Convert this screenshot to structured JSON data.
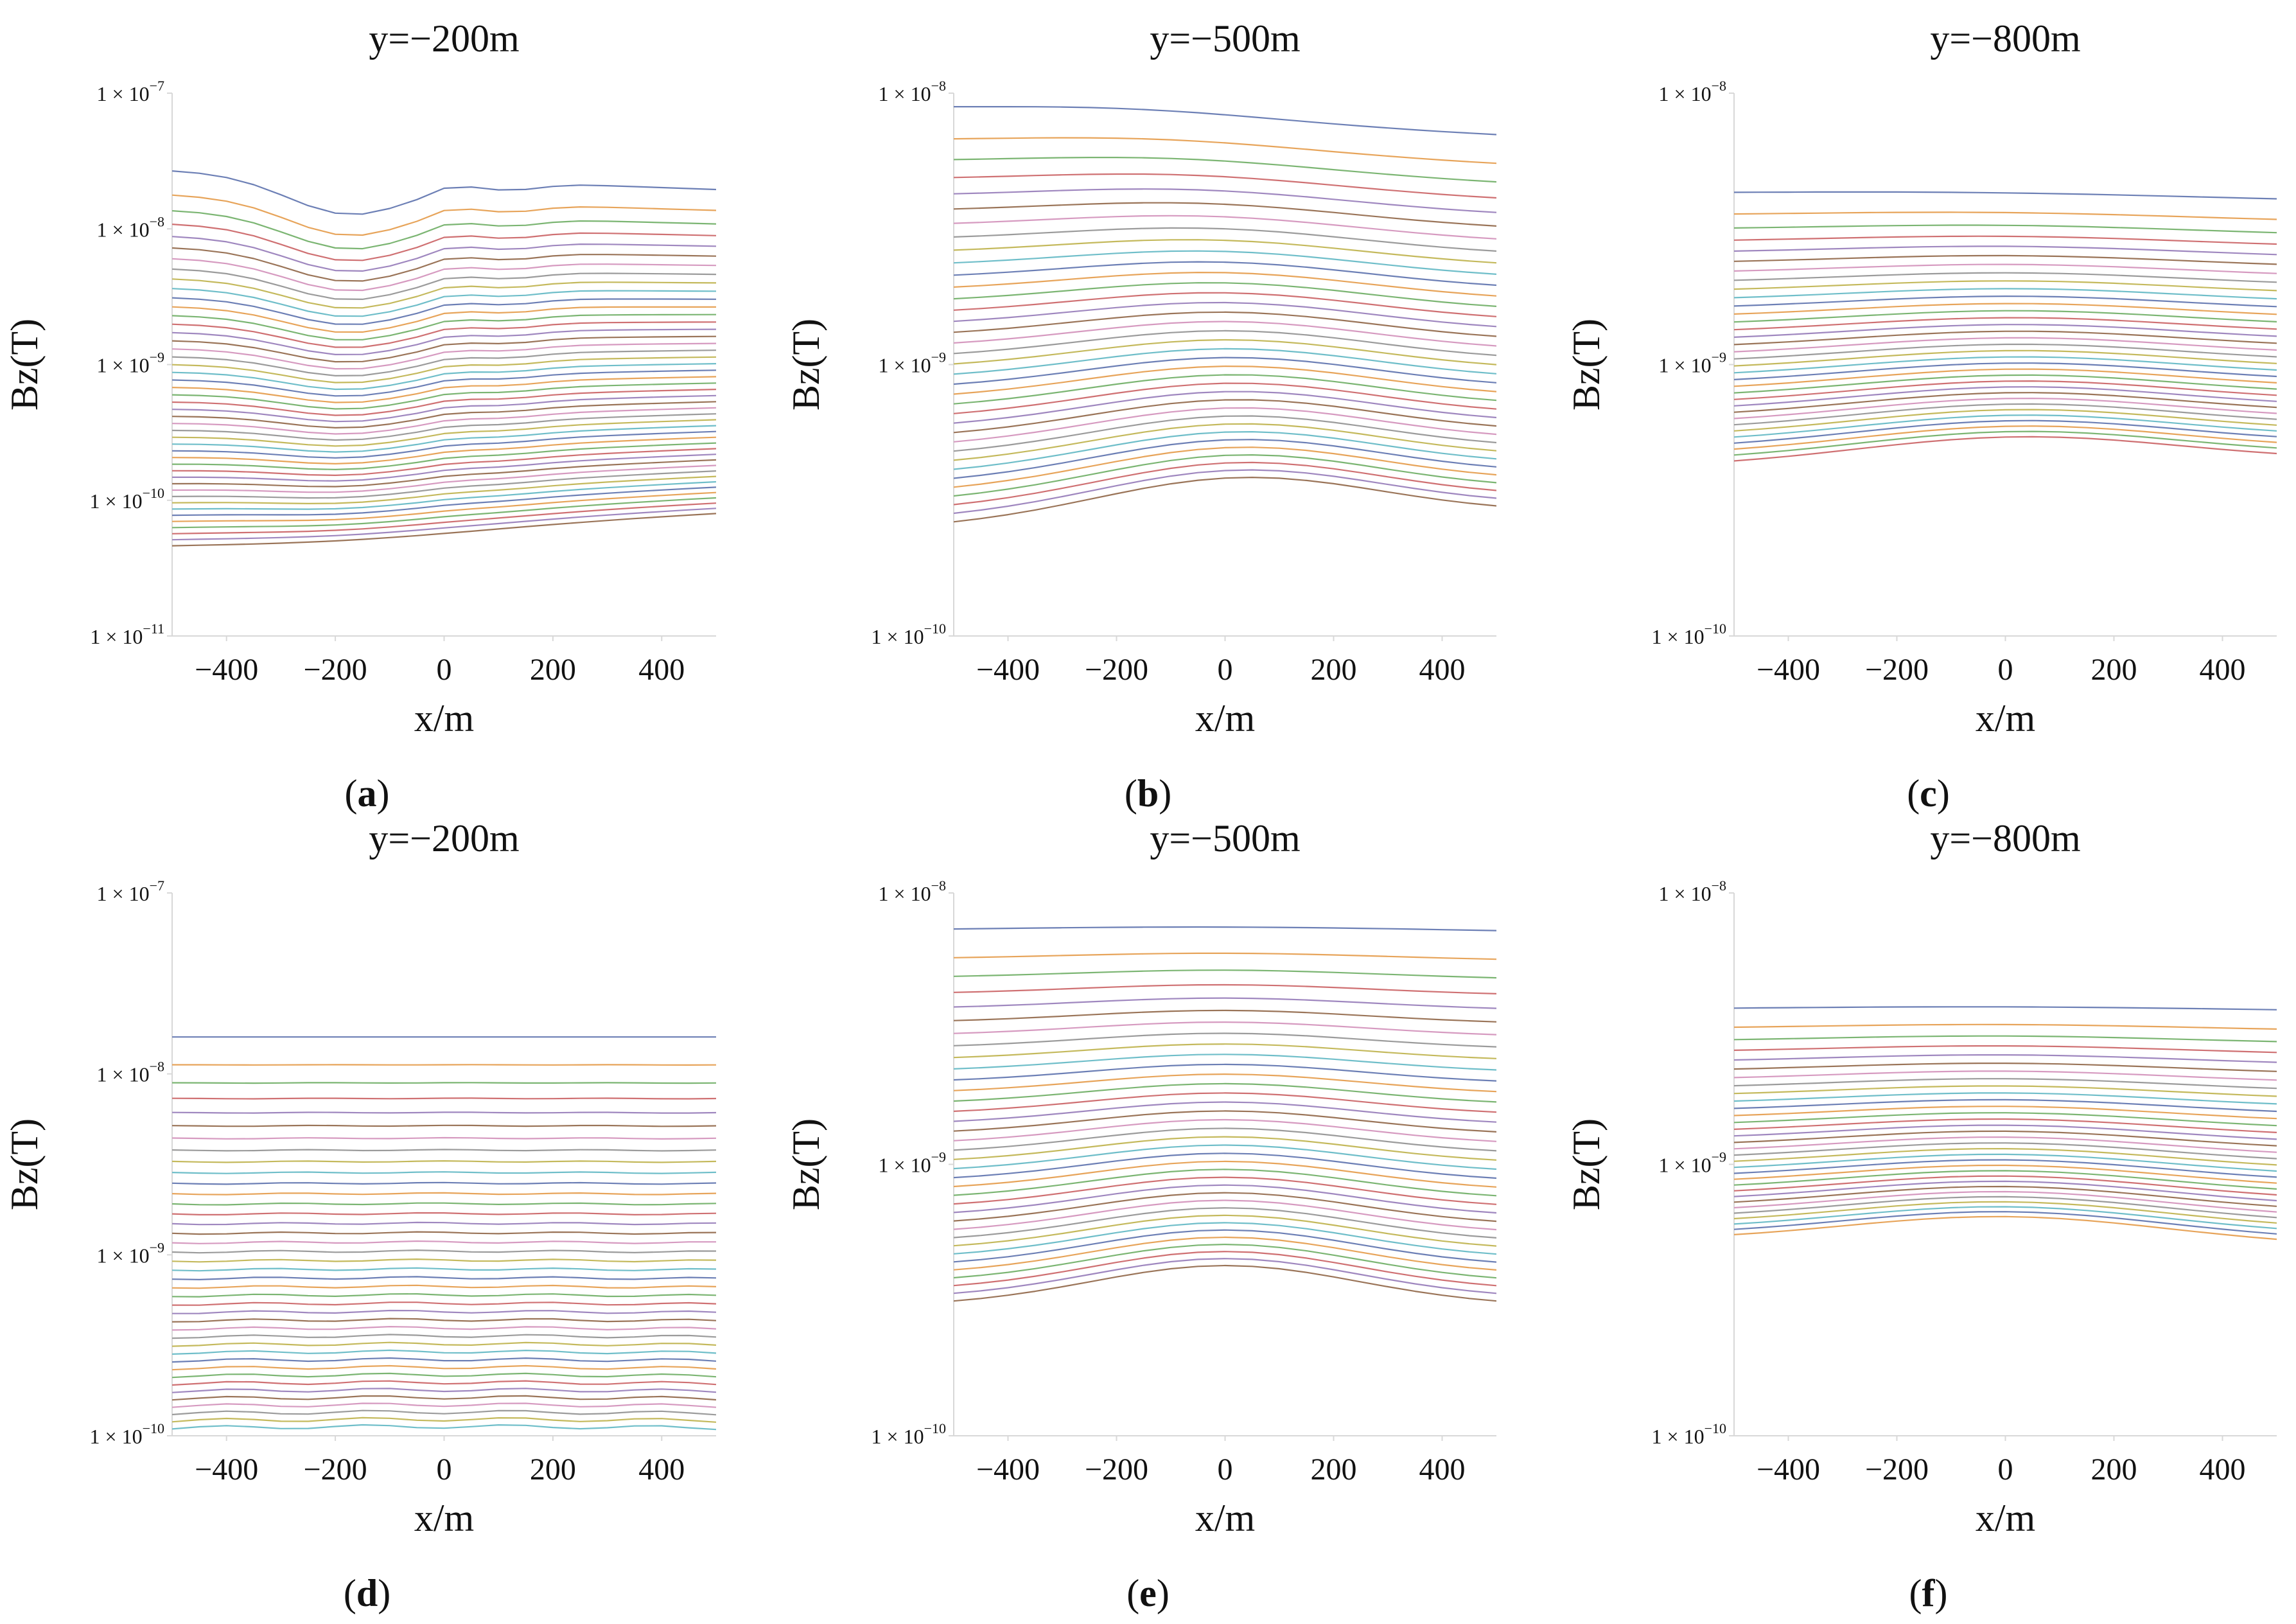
{
  "figure": {
    "panel_labels": [
      "a",
      "b",
      "c",
      "d",
      "e",
      "f"
    ]
  },
  "palette": [
    "#6c7fb5",
    "#e7a45a",
    "#7bb572",
    "#cf7072",
    "#9f87bf",
    "#9a7458",
    "#d69ac0",
    "#9b9b9b",
    "#c4b95c",
    "#6fbec9"
  ],
  "chart_data": [
    {
      "type": "line",
      "label": "a",
      "title": "y=−200m",
      "xlabel": "x/m",
      "ylabel": "Bz(T)",
      "xlim": [
        -500,
        500
      ],
      "ylim": [
        1e-11,
        1e-07
      ],
      "yscale": "log",
      "xticks": [
        -400,
        -200,
        0,
        200,
        400
      ],
      "xtick_labels": [
        "−400",
        "−200",
        "0",
        "200",
        "400"
      ],
      "yticks": [
        {
          "mant": "1 × 10",
          "exp": "−7"
        },
        {
          "mant": "1 × 10",
          "exp": "−8"
        },
        {
          "mant": "1 × 10",
          "exp": "−9"
        },
        {
          "mant": "1 × 10",
          "exp": "−10"
        },
        {
          "mant": "1 × 10",
          "exp": "−11"
        }
      ],
      "x": [
        -500,
        -450,
        -400,
        -350,
        -300,
        -250,
        -200,
        -150,
        -100,
        -50,
        0,
        50,
        100,
        150,
        200,
        250,
        300,
        350,
        400,
        450,
        500
      ],
      "series_count": 46,
      "series_range": {
        "top_left": 2.7e-08,
        "top_right": 1.95e-08,
        "bottom_left": 5e-11,
        "bottom_right": 7.5e-11
      },
      "profile": "Near-surface curves show a dip centred near x = −200 m with a sharp kink at x ≈ 0 m; late-time curves are smooth with a shallow minimum near x = −200 m"
    },
    {
      "type": "line",
      "label": "b",
      "title": "y=−500m",
      "xlabel": "x/m",
      "ylabel": "Bz(T)",
      "xlim": [
        -500,
        500
      ],
      "ylim": [
        1e-10,
        1e-08
      ],
      "yscale": "log",
      "xticks": [
        -400,
        -200,
        0,
        200,
        400
      ],
      "xtick_labels": [
        "−400",
        "−200",
        "0",
        "200",
        "400"
      ],
      "yticks": [
        {
          "mant": "1 × 10",
          "exp": "−8"
        },
        {
          "mant": "1 × 10",
          "exp": "−9"
        },
        {
          "mant": "1 × 10",
          "exp": "−10"
        }
      ],
      "x": [
        -500,
        -450,
        -400,
        -350,
        -300,
        -250,
        -200,
        -150,
        -100,
        -50,
        0,
        50,
        100,
        150,
        200,
        250,
        300,
        350,
        400,
        450,
        500
      ],
      "series_count": 36,
      "series_range": {
        "top_left": 8.5e-09,
        "top_right": 7.5e-09,
        "bottom_left": 2.5e-10,
        "bottom_right": 2.8e-10
      },
      "profile": "Early-time curves are highest near x = −200 m; late-time curves form a broad bump peaking near x = 0 m"
    },
    {
      "type": "line",
      "label": "c",
      "title": "y=−800m",
      "xlabel": "x/m",
      "ylabel": "Bz(T)",
      "xlim": [
        -500,
        500
      ],
      "ylim": [
        1e-10,
        1e-08
      ],
      "yscale": "log",
      "xticks": [
        -400,
        -200,
        0,
        200,
        400
      ],
      "xtick_labels": [
        "−400",
        "−200",
        "0",
        "200",
        "400"
      ],
      "yticks": [
        {
          "mant": "1 × 10",
          "exp": "−8"
        },
        {
          "mant": "1 × 10",
          "exp": "−9"
        },
        {
          "mant": "1 × 10",
          "exp": "−10"
        }
      ],
      "x": [
        -500,
        -450,
        -400,
        -350,
        -300,
        -250,
        -200,
        -150,
        -100,
        -50,
        0,
        50,
        100,
        150,
        200,
        250,
        300,
        350,
        400,
        450,
        500
      ],
      "series_count": 34,
      "series_range": {
        "top_left": 4.2e-09,
        "top_right": 4e-09,
        "bottom_left": 4.2e-10,
        "bottom_right": 4.4e-10
      },
      "profile": "Gentle bump peaking near x = 0 m, growing with time"
    },
    {
      "type": "line",
      "label": "d",
      "title": "y=−200m",
      "xlabel": "x/m",
      "ylabel": "Bz(T)",
      "xlim": [
        -500,
        500
      ],
      "ylim": [
        1e-10,
        1e-07
      ],
      "yscale": "log",
      "xticks": [
        -400,
        -200,
        0,
        200,
        400
      ],
      "xtick_labels": [
        "−400",
        "−200",
        "0",
        "200",
        "400"
      ],
      "yticks": [
        {
          "mant": "1 × 10",
          "exp": "−7"
        },
        {
          "mant": "1 × 10",
          "exp": "−8"
        },
        {
          "mant": "1 × 10",
          "exp": "−9"
        },
        {
          "mant": "1 × 10",
          "exp": "−10"
        }
      ],
      "x": [
        -500,
        -450,
        -400,
        -350,
        -300,
        -250,
        -200,
        -150,
        -100,
        -50,
        0,
        50,
        100,
        150,
        200,
        250,
        300,
        350,
        400,
        450,
        500
      ],
      "series_count": 40,
      "series_range": {
        "top_left": 1.6e-08,
        "top_right": 1.6e-08,
        "bottom_left": 1.1e-10,
        "bottom_right": 1.1e-10
      },
      "profile": "Nearly flat horizontal curves"
    },
    {
      "type": "line",
      "label": "e",
      "title": "y=−500m",
      "xlabel": "x/m",
      "ylabel": "Bz(T)",
      "xlim": [
        -500,
        500
      ],
      "ylim": [
        1e-10,
        1e-08
      ],
      "yscale": "log",
      "xticks": [
        -400,
        -200,
        0,
        200,
        400
      ],
      "xtick_labels": [
        "−400",
        "−200",
        "0",
        "200",
        "400"
      ],
      "yticks": [
        {
          "mant": "1 × 10",
          "exp": "−8"
        },
        {
          "mant": "1 × 10",
          "exp": "−9"
        },
        {
          "mant": "1 × 10",
          "exp": "−10"
        }
      ],
      "x": [
        -500,
        -450,
        -400,
        -350,
        -300,
        -250,
        -200,
        -150,
        -100,
        -50,
        0,
        50,
        100,
        150,
        200,
        250,
        300,
        350,
        400,
        450,
        500
      ],
      "series_count": 36,
      "series_range": {
        "top_left": 7.2e-09,
        "top_right": 7.1e-09,
        "bottom_left": 3e-10,
        "bottom_right": 3e-10
      },
      "profile": "Symmetric bump peaking at x = 0 m, more pronounced at late times"
    },
    {
      "type": "line",
      "label": "f",
      "title": "y=−800m",
      "xlabel": "x/m",
      "ylabel": "Bz(T)",
      "xlim": [
        -500,
        500
      ],
      "ylim": [
        1e-10,
        1e-08
      ],
      "yscale": "log",
      "xticks": [
        -400,
        -200,
        0,
        200,
        400
      ],
      "xtick_labels": [
        "−400",
        "−200",
        "0",
        "200",
        "400"
      ],
      "yticks": [
        {
          "mant": "1 × 10",
          "exp": "−8"
        },
        {
          "mant": "1 × 10",
          "exp": "−9"
        },
        {
          "mant": "1 × 10",
          "exp": "−10"
        }
      ],
      "x": [
        -500,
        -450,
        -400,
        -350,
        -300,
        -250,
        -200,
        -150,
        -100,
        -50,
        0,
        50,
        100,
        150,
        200,
        250,
        300,
        350,
        400,
        450,
        500
      ],
      "series_count": 32,
      "series_range": {
        "top_left": 3.7e-09,
        "top_right": 3.65e-09,
        "bottom_left": 5.2e-10,
        "bottom_right": 5e-10
      },
      "profile": "Gentle symmetric bump peaking at x = 0 m"
    }
  ]
}
